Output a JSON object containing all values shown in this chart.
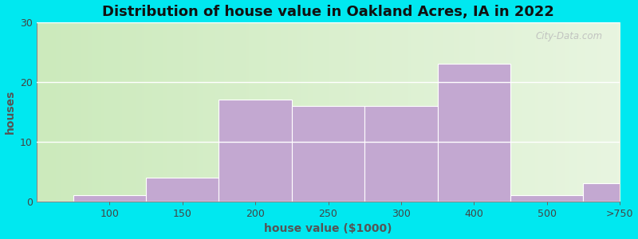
{
  "title": "Distribution of house value in Oakland Acres, IA in 2022",
  "xlabel": "house value ($1000)",
  "ylabel": "houses",
  "bar_labels": [
    "100",
    "150",
    "200",
    "250",
    "300",
    "400",
    "500",
    ">750"
  ],
  "bar_values": [
    1,
    4,
    17,
    16,
    16,
    23,
    1,
    3
  ],
  "bar_color": "#c3a8d1",
  "background_outer": "#00e8f0",
  "ylim": [
    0,
    30
  ],
  "yticks": [
    0,
    10,
    20,
    30
  ],
  "title_fontsize": 13,
  "axis_label_fontsize": 10,
  "watermark_text": "City-Data.com",
  "n_bars": 8
}
